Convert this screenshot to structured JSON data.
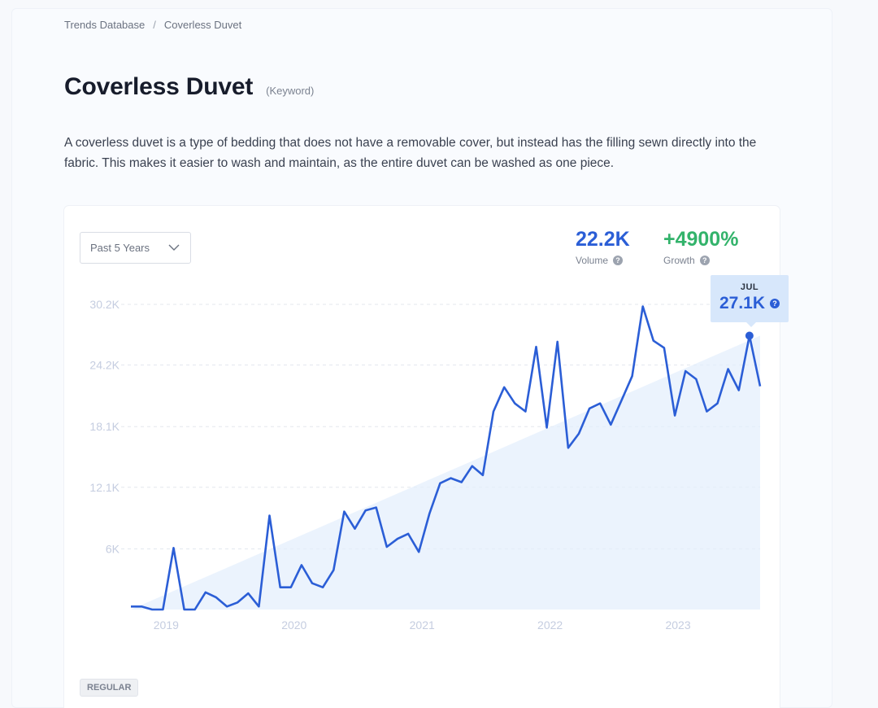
{
  "breadcrumb": {
    "root": "Trends Database",
    "separator": "/",
    "current": "Coverless Duvet"
  },
  "page": {
    "title": "Coverless Duvet",
    "tag": "(Keyword)",
    "description": "A coverless duvet is a type of bedding that does not have a removable cover, but instead has the filling sewn directly into the fabric. This makes it easier to wash and maintain, as the entire duvet can be washed as one piece."
  },
  "filter": {
    "selected": "Past 5 Years",
    "icon": "chevron-down-icon"
  },
  "stats": {
    "volume": {
      "value": "22.2K",
      "label": "Volume",
      "help_icon": "question-icon"
    },
    "growth": {
      "value": "+4900%",
      "label": "Growth",
      "help_icon": "question-icon"
    }
  },
  "tooltip": {
    "month": "JUL",
    "value": "27.1K"
  },
  "badge": "REGULAR",
  "colors": {
    "line": "#2b5ed6",
    "growth": "#33b36b",
    "area": "#e3eefc",
    "tooltip_bg": "#d7e7fb"
  },
  "chart_data": {
    "type": "line",
    "y_ticks": [
      "30.2K",
      "24.2K",
      "18.1K",
      "12.1K",
      "6K"
    ],
    "y_tick_values": [
      30200,
      24200,
      18100,
      12100,
      6000
    ],
    "x_ticks": [
      "2019",
      "2020",
      "2021",
      "2022",
      "2023"
    ],
    "ylim": [
      0,
      30200
    ],
    "grid": true,
    "trend_area": true,
    "highlight": {
      "label": "JUL",
      "value": 27100
    },
    "series": [
      {
        "values": [
          300,
          300,
          0,
          0,
          6100,
          0,
          0,
          1700,
          1200,
          300,
          700,
          1600,
          300,
          9300,
          2200,
          2200,
          4400,
          2600,
          2200,
          3900,
          9700,
          8000,
          9800,
          10100,
          6200,
          7000,
          7500,
          5700,
          9500,
          12500,
          13000,
          12600,
          14200,
          13300,
          19600,
          22000,
          20400,
          19600,
          26000,
          18000,
          26500,
          16000,
          17400,
          19900,
          20400,
          18300,
          20700,
          23100,
          30000,
          26600,
          25900,
          19200,
          23600,
          22800,
          19600,
          20400,
          23800,
          21700,
          27100,
          22100
        ]
      }
    ]
  }
}
